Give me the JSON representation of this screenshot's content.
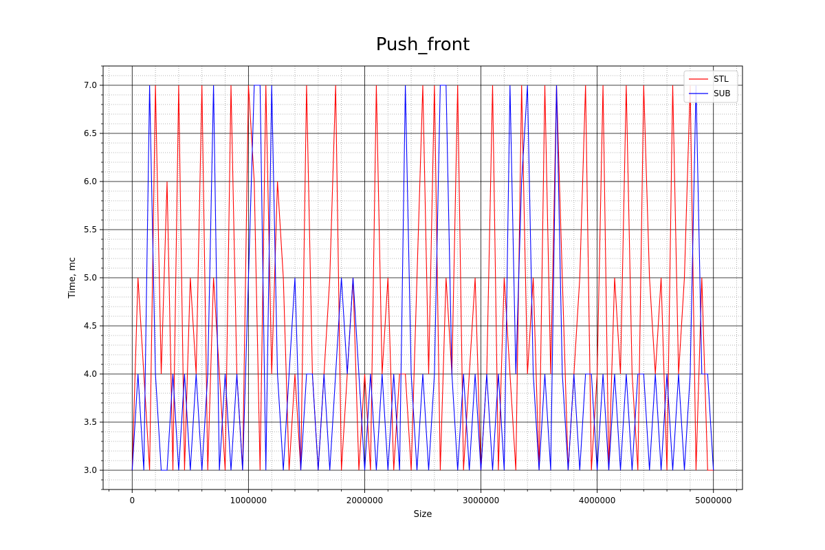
{
  "chart_data": {
    "type": "line",
    "title": "Push_front",
    "xlabel": "Size",
    "ylabel": "Time, mc",
    "xlim": [
      -250000,
      5250000
    ],
    "ylim": [
      2.8,
      7.2
    ],
    "x_ticks": [
      0,
      1000000,
      2000000,
      3000000,
      4000000,
      5000000
    ],
    "x_tick_labels": [
      "0",
      "1000000",
      "2000000",
      "3000000",
      "4000000",
      "5000000"
    ],
    "y_ticks": [
      3.0,
      3.5,
      4.0,
      4.5,
      5.0,
      5.5,
      6.0,
      6.5,
      7.0
    ],
    "y_tick_labels": [
      "3.0",
      "3.5",
      "4.0",
      "4.5",
      "5.0",
      "5.5",
      "6.0",
      "6.5",
      "7.0"
    ],
    "grid": "major solid black, minor dotted gray",
    "legend_position": "top-right",
    "series": [
      {
        "name": "STL",
        "color": "#ff0000",
        "x": [
          0,
          50000,
          100000,
          150000,
          200000,
          250000,
          300000,
          350000,
          400000,
          450000,
          500000,
          550000,
          600000,
          650000,
          700000,
          750000,
          800000,
          850000,
          900000,
          950000,
          1000000,
          1050000,
          1100000,
          1150000,
          1200000,
          1250000,
          1300000,
          1350000,
          1400000,
          1450000,
          1500000,
          1550000,
          1600000,
          1650000,
          1700000,
          1750000,
          1800000,
          1850000,
          1900000,
          1950000,
          2000000,
          2050000,
          2100000,
          2150000,
          2200000,
          2250000,
          2300000,
          2350000,
          2400000,
          2450000,
          2500000,
          2550000,
          2600000,
          2650000,
          2700000,
          2750000,
          2800000,
          2850000,
          2900000,
          2950000,
          3000000,
          3050000,
          3100000,
          3150000,
          3200000,
          3250000,
          3300000,
          3350000,
          3400000,
          3450000,
          3500000,
          3550000,
          3600000,
          3650000,
          3700000,
          3750000,
          3800000,
          3850000,
          3900000,
          3950000,
          4000000,
          4050000,
          4100000,
          4150000,
          4200000,
          4250000,
          4300000,
          4350000,
          4400000,
          4450000,
          4500000,
          4550000,
          4600000,
          4650000,
          4700000,
          4750000,
          4800000,
          4850000,
          4900000,
          4950000,
          5000000
        ],
        "values": [
          3,
          5,
          4,
          3,
          7,
          4,
          6,
          3,
          7,
          3,
          5,
          4,
          7,
          3,
          5,
          4,
          3,
          7,
          4,
          3,
          7,
          6,
          3,
          7,
          4,
          6,
          5,
          3,
          4,
          3,
          7,
          4,
          3,
          4,
          5,
          7,
          3,
          4,
          5,
          3,
          4,
          3,
          7,
          4,
          5,
          3,
          4,
          4,
          3,
          5,
          7,
          4,
          7,
          3,
          5,
          4,
          7,
          3,
          4,
          5,
          3,
          4,
          7,
          3,
          5,
          4,
          3,
          7,
          4,
          5,
          3,
          7,
          4,
          7,
          5,
          3,
          4,
          5,
          7,
          3,
          4,
          7,
          3,
          5,
          4,
          7,
          4,
          3,
          7,
          5,
          4,
          5,
          3,
          7,
          4,
          5,
          7,
          3,
          5,
          3,
          3
        ]
      },
      {
        "name": "SUB",
        "color": "#0000ff",
        "x": [
          0,
          50000,
          100000,
          150000,
          200000,
          250000,
          300000,
          350000,
          400000,
          450000,
          500000,
          550000,
          600000,
          650000,
          700000,
          750000,
          800000,
          850000,
          900000,
          950000,
          1000000,
          1050000,
          1100000,
          1150000,
          1200000,
          1250000,
          1300000,
          1350000,
          1400000,
          1450000,
          1500000,
          1550000,
          1600000,
          1650000,
          1700000,
          1750000,
          1800000,
          1850000,
          1900000,
          1950000,
          2000000,
          2050000,
          2100000,
          2150000,
          2200000,
          2250000,
          2300000,
          2350000,
          2400000,
          2450000,
          2500000,
          2550000,
          2600000,
          2650000,
          2700000,
          2750000,
          2800000,
          2850000,
          2900000,
          2950000,
          3000000,
          3050000,
          3100000,
          3150000,
          3200000,
          3250000,
          3300000,
          3350000,
          3400000,
          3450000,
          3500000,
          3550000,
          3600000,
          3650000,
          3700000,
          3750000,
          3800000,
          3850000,
          3900000,
          3950000,
          4000000,
          4050000,
          4100000,
          4150000,
          4200000,
          4250000,
          4300000,
          4350000,
          4400000,
          4450000,
          4500000,
          4550000,
          4600000,
          4650000,
          4700000,
          4750000,
          4800000,
          4850000,
          4900000,
          4950000,
          5000000
        ],
        "values": [
          3,
          4,
          3,
          7,
          4,
          3,
          3,
          4,
          3,
          4,
          3,
          4,
          3,
          4,
          7,
          3,
          4,
          3,
          4,
          3,
          5,
          7,
          7,
          3,
          7,
          4,
          3,
          4,
          5,
          3,
          4,
          4,
          3,
          4,
          3,
          4,
          5,
          4,
          5,
          4,
          3,
          4,
          3,
          4,
          3,
          4,
          3,
          7,
          4,
          3,
          4,
          3,
          4,
          7,
          7,
          4,
          3,
          4,
          3,
          4,
          3,
          4,
          3,
          4,
          3,
          7,
          4,
          6,
          7,
          4,
          3,
          4,
          3,
          7,
          4,
          3,
          4,
          3,
          4,
          4,
          3,
          4,
          3,
          4,
          3,
          4,
          3,
          4,
          4,
          3,
          4,
          3,
          4,
          3,
          4,
          3,
          4,
          7,
          4,
          4,
          3
        ]
      }
    ]
  }
}
